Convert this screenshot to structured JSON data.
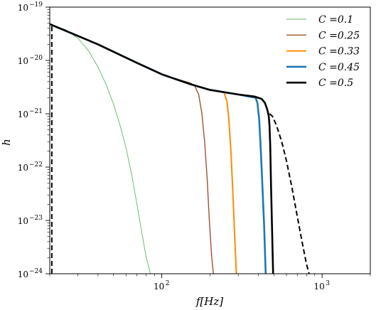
{
  "chart_data": {
    "type": "line",
    "xlabel": "f[Hz]",
    "ylabel": "h",
    "xscale": "log",
    "yscale": "log",
    "xlim": [
      20,
      2000
    ],
    "ylim": [
      1e-24,
      1e-19
    ],
    "legend_position": "top-right",
    "x_ticks": [
      {
        "value": 100,
        "base": "10",
        "exp": "2"
      },
      {
        "value": 1000,
        "base": "10",
        "exp": "3"
      }
    ],
    "y_ticks": [
      {
        "value": 1e-24,
        "base": "10",
        "exp": "−24"
      },
      {
        "value": 1e-23,
        "base": "10",
        "exp": "−23"
      },
      {
        "value": 1e-22,
        "base": "10",
        "exp": "−22"
      },
      {
        "value": 1e-21,
        "base": "10",
        "exp": "−21"
      },
      {
        "value": 1e-20,
        "base": "10",
        "exp": "−20"
      },
      {
        "value": 1e-19,
        "base": "10",
        "exp": "−19"
      }
    ],
    "series": [
      {
        "name": "C =0.1",
        "color": "#5cb85c",
        "width": 0.9,
        "points": [
          [
            20,
            4.8e-20
          ],
          [
            25,
            3.8e-20
          ],
          [
            30,
            2.6e-20
          ],
          [
            35,
            1.5e-20
          ],
          [
            40,
            7.5e-21
          ],
          [
            45,
            3.5e-21
          ],
          [
            50,
            1.5e-21
          ],
          [
            55,
            6e-22
          ],
          [
            60,
            2.2e-22
          ],
          [
            65,
            7e-23
          ],
          [
            70,
            2e-23
          ],
          [
            75,
            6e-24
          ],
          [
            80,
            2e-24
          ],
          [
            85,
            1e-24
          ]
        ]
      },
      {
        "name": "C =0.25",
        "color": "#a0522d",
        "width": 1.4,
        "points": [
          [
            20,
            4.8e-20
          ],
          [
            40,
            2e-20
          ],
          [
            70,
            9e-21
          ],
          [
            100,
            5.5e-21
          ],
          [
            130,
            4.3e-21
          ],
          [
            150,
            3.8e-21
          ],
          [
            160,
            3.4e-21
          ],
          [
            170,
            2.3e-21
          ],
          [
            178,
            1e-21
          ],
          [
            185,
            3e-22
          ],
          [
            192,
            6e-23
          ],
          [
            198,
            1e-23
          ],
          [
            205,
            2e-24
          ],
          [
            210,
            1e-24
          ]
        ]
      },
      {
        "name": "C =0.33",
        "color": "#ff8c00",
        "width": 2.0,
        "points": [
          [
            20,
            4.8e-20
          ],
          [
            40,
            2e-20
          ],
          [
            70,
            9e-21
          ],
          [
            100,
            5.5e-21
          ],
          [
            150,
            3.6e-21
          ],
          [
            200,
            2.8e-21
          ],
          [
            230,
            2.6e-21
          ],
          [
            245,
            2.5e-21
          ],
          [
            255,
            1.7e-21
          ],
          [
            262,
            8e-22
          ],
          [
            270,
            2e-22
          ],
          [
            278,
            3e-23
          ],
          [
            285,
            5e-24
          ],
          [
            292,
            1e-24
          ]
        ]
      },
      {
        "name": "C =0.45",
        "color": "#1f77b4",
        "width": 2.6,
        "points": [
          [
            20,
            4.8e-20
          ],
          [
            40,
            2e-20
          ],
          [
            70,
            9e-21
          ],
          [
            100,
            5.5e-21
          ],
          [
            150,
            3.6e-21
          ],
          [
            200,
            2.8e-21
          ],
          [
            300,
            2.3e-21
          ],
          [
            350,
            2.1e-21
          ],
          [
            385,
            2e-21
          ],
          [
            395,
            1.6e-21
          ],
          [
            405,
            8e-22
          ],
          [
            415,
            2e-22
          ],
          [
            425,
            4e-23
          ],
          [
            435,
            8e-24
          ],
          [
            445,
            1e-24
          ]
        ]
      },
      {
        "name": "C =0.5",
        "color": "#000000",
        "width": 2.6,
        "points": [
          [
            20,
            4.8e-20
          ],
          [
            40,
            2e-20
          ],
          [
            70,
            9e-21
          ],
          [
            100,
            5.5e-21
          ],
          [
            150,
            3.6e-21
          ],
          [
            200,
            2.8e-21
          ],
          [
            300,
            2.3e-21
          ],
          [
            380,
            2.1e-21
          ],
          [
            420,
            1.9e-21
          ],
          [
            440,
            1.6e-21
          ],
          [
            455,
            1.2e-21
          ],
          [
            465,
            9e-22
          ],
          [
            470,
            6e-22
          ],
          [
            475,
            2.5e-22
          ],
          [
            480,
            5e-23
          ],
          [
            487,
            8e-24
          ],
          [
            495,
            1e-24
          ]
        ]
      }
    ],
    "dashed_series": [
      {
        "color": "#000000",
        "width": 2.0,
        "points": [
          [
            20.6,
            1e-24
          ],
          [
            20.6,
            4.8e-20
          ]
        ]
      },
      {
        "color": "#000000",
        "width": 2.0,
        "points": [
          [
            470,
            1e-21
          ],
          [
            490,
            9e-22
          ],
          [
            520,
            6e-22
          ],
          [
            560,
            3e-22
          ],
          [
            600,
            1.3e-22
          ],
          [
            650,
            4e-23
          ],
          [
            700,
            1.2e-23
          ],
          [
            750,
            4e-24
          ],
          [
            800,
            1.5e-24
          ],
          [
            830,
            1e-24
          ]
        ]
      }
    ]
  }
}
